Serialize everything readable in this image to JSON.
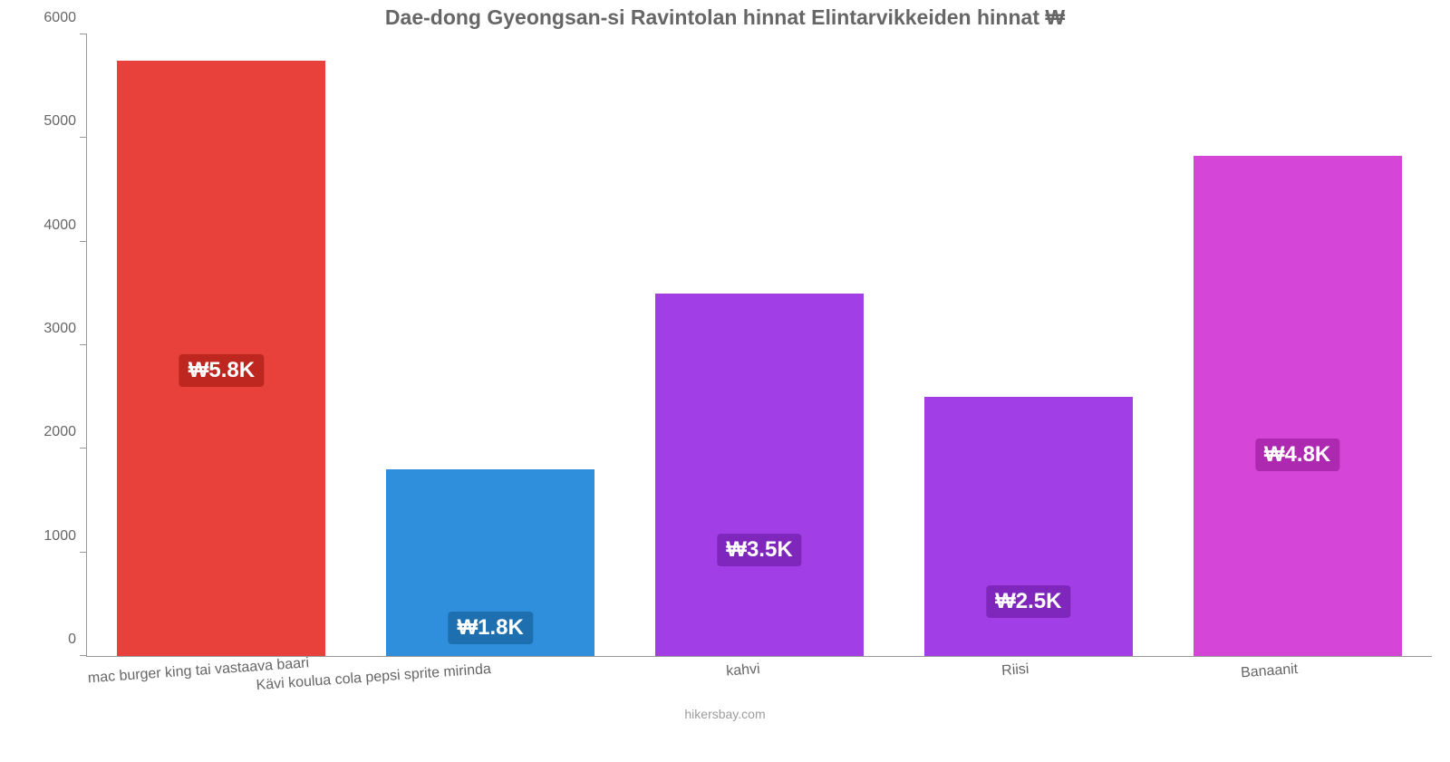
{
  "chart": {
    "type": "bar",
    "title": "Dae-dong Gyeongsan-si Ravintolan hinnat Elintarvikkeiden hinnat ₩",
    "title_fontsize": 23,
    "title_color": "#666666",
    "background_color": "#ffffff",
    "axis_color": "#999999",
    "label_color": "#666666",
    "tick_fontsize": 16,
    "xlabel_fontsize": 16,
    "value_fontsize": 24,
    "ylim_max": 6000,
    "yticks": [
      {
        "v": 0,
        "label": "0"
      },
      {
        "v": 1000,
        "label": "1000"
      },
      {
        "v": 2000,
        "label": "2000"
      },
      {
        "v": 3000,
        "label": "3000"
      },
      {
        "v": 4000,
        "label": "4000"
      },
      {
        "v": 5000,
        "label": "5000"
      },
      {
        "v": 6000,
        "label": "6000"
      }
    ],
    "bar_width_pct": 15.5,
    "bars": [
      {
        "category": "mac burger king tai vastaava baari",
        "value": 5750,
        "value_label": "₩5.8K",
        "bar_color": "#e8403a",
        "badge_color": "#be2620"
      },
      {
        "category": "Kävi koulua cola pepsi sprite mirinda",
        "value": 1800,
        "value_label": "₩1.8K",
        "bar_color": "#2f8fdc",
        "badge_color": "#1e6fb0"
      },
      {
        "category": "kahvi",
        "value": 3500,
        "value_label": "₩3.5K",
        "bar_color": "#a23ee6",
        "badge_color": "#7f27bd"
      },
      {
        "category": "Riisi",
        "value": 2500,
        "value_label": "₩2.5K",
        "bar_color": "#a23ee6",
        "badge_color": "#7f27bd"
      },
      {
        "category": "Banaanit",
        "value": 4830,
        "value_label": "₩4.8K",
        "bar_color": "#d545d8",
        "badge_color": "#ad29af"
      }
    ],
    "attribution": "hikersbay.com",
    "attribution_fontsize": 14
  }
}
